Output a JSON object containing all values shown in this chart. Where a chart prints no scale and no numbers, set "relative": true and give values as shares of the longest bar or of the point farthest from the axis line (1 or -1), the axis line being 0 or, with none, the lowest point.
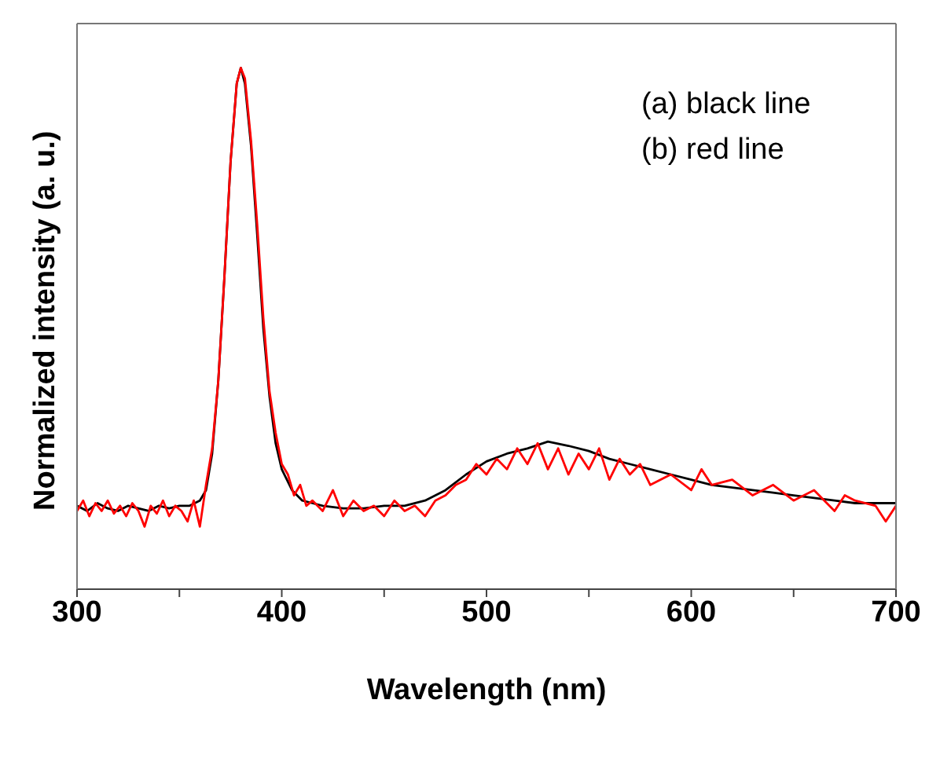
{
  "chart_data": {
    "type": "line",
    "relative": true,
    "xlabel": "Wavelength (nm)",
    "ylabel": "Normalized intensity (a. u.)",
    "xlim": [
      300,
      700
    ],
    "xticks": [
      300,
      {
        "value": 350,
        "label": null
      },
      400,
      {
        "value": 450,
        "label": null
      },
      500,
      {
        "value": 550,
        "label": null
      },
      600,
      {
        "value": 650,
        "label": null
      },
      700
    ],
    "annotations": [
      "(a) black line",
      "(b) red line"
    ],
    "marker": "none",
    "line_style": "solid",
    "series": [
      {
        "color": "#000000",
        "x": [
          300,
          305,
          310,
          315,
          320,
          325,
          330,
          335,
          340,
          345,
          350,
          355,
          360,
          363,
          366,
          369,
          372,
          375,
          378,
          380,
          382,
          385,
          388,
          391,
          394,
          397,
          400,
          405,
          410,
          415,
          420,
          430,
          440,
          450,
          460,
          470,
          480,
          490,
          500,
          510,
          520,
          530,
          540,
          550,
          560,
          570,
          580,
          590,
          600,
          610,
          620,
          630,
          640,
          650,
          660,
          670,
          680,
          690,
          700
        ],
        "values": [
          0.16,
          0.15,
          0.165,
          0.155,
          0.15,
          0.16,
          0.155,
          0.15,
          0.16,
          0.155,
          0.16,
          0.16,
          0.17,
          0.19,
          0.26,
          0.4,
          0.6,
          0.82,
          0.97,
          1.0,
          0.97,
          0.85,
          0.68,
          0.5,
          0.37,
          0.28,
          0.23,
          0.19,
          0.17,
          0.165,
          0.16,
          0.155,
          0.155,
          0.16,
          0.16,
          0.17,
          0.19,
          0.22,
          0.245,
          0.26,
          0.27,
          0.283,
          0.275,
          0.265,
          0.25,
          0.24,
          0.23,
          0.22,
          0.21,
          0.2,
          0.195,
          0.19,
          0.185,
          0.18,
          0.175,
          0.17,
          0.165,
          0.165,
          0.165
        ]
      },
      {
        "color": "#ff0000",
        "x": [
          300,
          303,
          306,
          309,
          312,
          315,
          318,
          321,
          324,
          327,
          330,
          333,
          336,
          339,
          342,
          345,
          348,
          351,
          354,
          357,
          360,
          363,
          366,
          369,
          372,
          375,
          378,
          380,
          382,
          385,
          388,
          391,
          394,
          397,
          400,
          403,
          406,
          409,
          412,
          415,
          420,
          425,
          430,
          435,
          440,
          445,
          450,
          455,
          460,
          465,
          470,
          475,
          480,
          485,
          490,
          495,
          500,
          505,
          510,
          515,
          520,
          525,
          530,
          535,
          540,
          545,
          550,
          555,
          560,
          565,
          570,
          575,
          580,
          590,
          600,
          605,
          610,
          620,
          630,
          640,
          650,
          660,
          670,
          675,
          680,
          690,
          695,
          700
        ],
        "values": [
          0.15,
          0.17,
          0.14,
          0.165,
          0.15,
          0.17,
          0.145,
          0.16,
          0.14,
          0.165,
          0.15,
          0.12,
          0.16,
          0.145,
          0.17,
          0.14,
          0.16,
          0.15,
          0.13,
          0.17,
          0.12,
          0.2,
          0.27,
          0.4,
          0.6,
          0.82,
          0.97,
          1.0,
          0.98,
          0.86,
          0.7,
          0.52,
          0.38,
          0.3,
          0.24,
          0.22,
          0.18,
          0.2,
          0.16,
          0.17,
          0.15,
          0.19,
          0.14,
          0.17,
          0.15,
          0.16,
          0.14,
          0.17,
          0.15,
          0.16,
          0.14,
          0.17,
          0.18,
          0.2,
          0.21,
          0.24,
          0.22,
          0.25,
          0.23,
          0.27,
          0.24,
          0.28,
          0.23,
          0.27,
          0.22,
          0.26,
          0.23,
          0.27,
          0.21,
          0.25,
          0.22,
          0.24,
          0.2,
          0.22,
          0.19,
          0.23,
          0.2,
          0.21,
          0.18,
          0.2,
          0.17,
          0.19,
          0.15,
          0.18,
          0.17,
          0.16,
          0.13,
          0.16
        ]
      }
    ]
  }
}
